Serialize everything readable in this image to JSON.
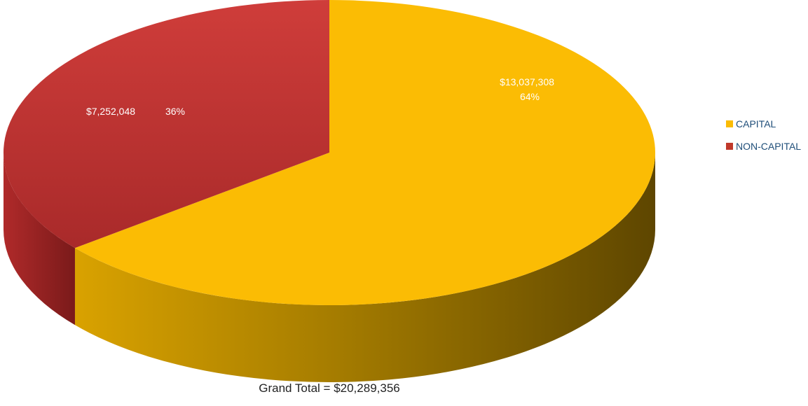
{
  "chart_data": {
    "type": "pie",
    "style": "3d",
    "slices": [
      {
        "label": "CAPITAL",
        "value": 13037308,
        "value_label": "$13,037,308",
        "percent_label": "64%",
        "color": "#fbbc04",
        "dark": "#6b4e00"
      },
      {
        "label": "NON-CAPITAL",
        "value": 7252048,
        "value_label": "$7,252,048",
        "percent_label": "36%",
        "color": "#c0392b",
        "dark": "#7a1a1a"
      }
    ],
    "legend_position": "right",
    "footer": "Grand Total = $20,289,356"
  }
}
